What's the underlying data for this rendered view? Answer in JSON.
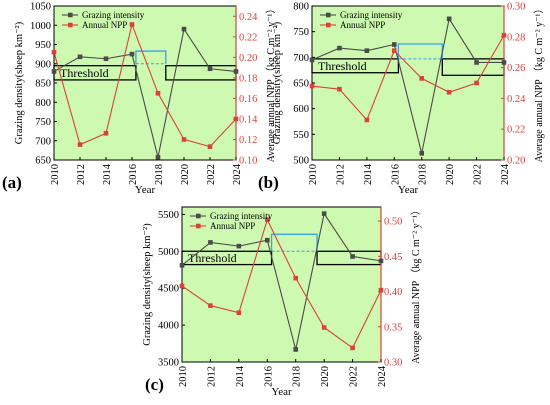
{
  "colors": {
    "background": "#cdfab0",
    "grazing": "#4a4a4a",
    "npp": "#d9423a",
    "npp_axis": "#d9423a",
    "blue_line": "#3ba0e8",
    "box": "#000000"
  },
  "chart_data": [
    {
      "id": "a",
      "panel_label": "(a)",
      "type": "line",
      "xlabel": "Year",
      "ylabel_left": "Grazing density(sheep km⁻²)",
      "ylabel_right": "Average annual NPP （kg C m⁻² y⁻¹）",
      "x": [
        2010,
        2012,
        2014,
        2016,
        2018,
        2020,
        2022,
        2024
      ],
      "xticks": [
        "2010",
        "2012",
        "2014",
        "2016",
        "2018",
        "2020",
        "2022",
        "2024"
      ],
      "ylim_left": [
        650,
        1050
      ],
      "yticks_left": [
        "650",
        "700",
        "750",
        "800",
        "850",
        "900",
        "950",
        "1000",
        "1050"
      ],
      "ylim_right": [
        0.1,
        0.25
      ],
      "yticks_right": [
        "0.10",
        "0.12",
        "0.14",
        "0.16",
        "0.18",
        "0.20",
        "0.22",
        "0.24"
      ],
      "legend_position": "top-left",
      "series": [
        {
          "name": "Grazing intensity",
          "axis": "left",
          "values": [
            880,
            918,
            913,
            925,
            657,
            990,
            887,
            880
          ]
        },
        {
          "name": "Annual NPP",
          "axis": "right",
          "values": [
            0.205,
            0.115,
            0.126,
            0.232,
            0.165,
            0.12,
            0.113,
            0.14
          ]
        }
      ],
      "threshold": {
        "label": "Threshold",
        "left_low": 858,
        "left_high": 895,
        "right_low": 858,
        "right_high": 895,
        "box_years": [
          2010,
          2016.3,
          2018.6,
          2024
        ]
      },
      "blue_marks": {
        "top": 933,
        "mid": 900,
        "years": [
          2016.3,
          2018.6
        ]
      }
    },
    {
      "id": "b",
      "panel_label": "(b)",
      "type": "line",
      "xlabel": "Year",
      "ylabel_left": "Grazing density(sheep km⁻²)",
      "ylabel_right": "Average annual NPP （kg C m⁻² y⁻¹）",
      "x": [
        2010,
        2012,
        2014,
        2016,
        2018,
        2020,
        2022,
        2024
      ],
      "xticks": [
        "2010",
        "2012",
        "2014",
        "2016",
        "2018",
        "2020",
        "2022",
        "2024"
      ],
      "ylim_left": [
        500,
        800
      ],
      "yticks_left": [
        "500",
        "550",
        "600",
        "650",
        "700",
        "750",
        "800"
      ],
      "ylim_right": [
        0.2,
        0.3
      ],
      "yticks_right": [
        "0.20",
        "0.22",
        "0.24",
        "0.26",
        "0.28",
        "0.30"
      ],
      "legend_position": "top-left",
      "series": [
        {
          "name": "Grazing intensity",
          "axis": "left",
          "values": [
            695,
            718,
            713,
            725,
            513,
            775,
            690,
            690
          ]
        },
        {
          "name": "Annual NPP",
          "axis": "right",
          "values": [
            0.248,
            0.246,
            0.226,
            0.271,
            0.253,
            0.244,
            0.25,
            0.281
          ]
        }
      ],
      "threshold": {
        "label": "Threshold",
        "left_low": 670,
        "left_high": 697,
        "right_low": 665,
        "right_high": 697,
        "box_years": [
          2010,
          2016.3,
          2019.5,
          2024
        ]
      },
      "blue_marks": {
        "top": 726,
        "mid": 697,
        "years": [
          2016.3,
          2019.5
        ]
      }
    },
    {
      "id": "c",
      "panel_label": "(c)",
      "type": "line",
      "xlabel": "Year",
      "ylabel_left": "Grazing density(sheep km⁻²)",
      "ylabel_right": "Average annual NPP （kg C m⁻² y⁻¹）",
      "x": [
        2010,
        2012,
        2014,
        2016,
        2018,
        2020,
        2022,
        2024
      ],
      "xticks": [
        "2010",
        "2012",
        "2014",
        "2016",
        "2018",
        "2020",
        "2022",
        "2024"
      ],
      "ylim_left": [
        3500,
        5600
      ],
      "yticks_left": [
        "3500",
        "4000",
        "4500",
        "5000",
        "5500"
      ],
      "ylim_right": [
        0.3,
        0.52
      ],
      "yticks_right": [
        "0.30",
        "0.35",
        "0.40",
        "0.45",
        "0.50"
      ],
      "legend_position": "top-left",
      "series": [
        {
          "name": "Grazing intensity",
          "axis": "left",
          "values": [
            4810,
            5120,
            5070,
            5150,
            3670,
            5510,
            4930,
            4870
          ]
        },
        {
          "name": "Annual NPP",
          "axis": "right",
          "values": [
            0.408,
            0.38,
            0.37,
            0.502,
            0.419,
            0.349,
            0.32,
            0.402
          ]
        }
      ],
      "threshold": {
        "label": "Threshold",
        "left_low": 4820,
        "left_high": 5000,
        "right_low": 4820,
        "right_high": 5000,
        "box_years": [
          2010,
          2016.3,
          2019.5,
          2024
        ]
      },
      "blue_marks": {
        "top": 5230,
        "mid": 5000,
        "years": [
          2016.3,
          2019.5
        ]
      }
    }
  ]
}
